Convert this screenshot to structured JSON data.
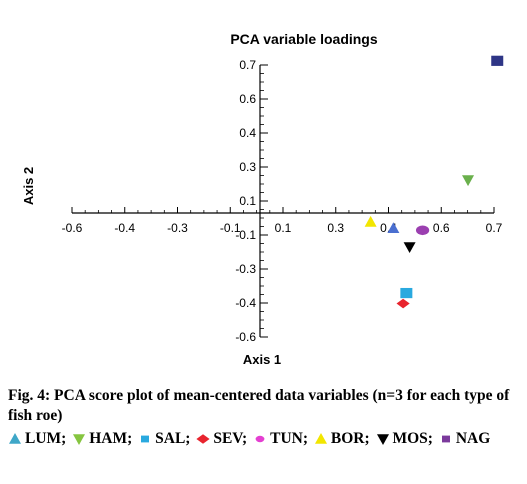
{
  "chart_data": {
    "type": "scatter",
    "title": "PCA variable loadings",
    "xlabel": "Axis 1",
    "ylabel": "Axis 2",
    "xlim": [
      -0.6,
      0.7
    ],
    "ylim": [
      -0.6,
      0.7
    ],
    "x_ticks": [
      "-0.6",
      "-0.4",
      "-0.3",
      "-0.1",
      "0.1",
      "0.3",
      "0.4",
      "0.6",
      "0.7"
    ],
    "y_ticks": [
      "0.7",
      "0.6",
      "0.4",
      "0.3",
      "0.1",
      "-0.1",
      "-0.3",
      "-0.4",
      "-0.6"
    ],
    "grid": false,
    "points": [
      {
        "label": "NAG",
        "x": 0.71,
        "y": 0.72,
        "marker": "square",
        "color": "#2e3586"
      },
      {
        "label": "HAM",
        "x": 0.62,
        "y": 0.15,
        "marker": "triangle-down",
        "color": "#6ab04c"
      },
      {
        "label": "BOR",
        "x": 0.32,
        "y": -0.05,
        "marker": "triangle-up",
        "color": "#f2e600"
      },
      {
        "label": "LUM",
        "x": 0.39,
        "y": -0.08,
        "marker": "triangle-up",
        "color": "#4a6fd0"
      },
      {
        "label": "TUN",
        "x": 0.48,
        "y": -0.09,
        "marker": "circle",
        "color": "#9b3fb0"
      },
      {
        "label": "MOS",
        "x": 0.44,
        "y": -0.17,
        "marker": "triangle-down",
        "color": "#000000"
      },
      {
        "label": "SAL",
        "x": 0.43,
        "y": -0.39,
        "marker": "square",
        "color": "#29a9df"
      },
      {
        "label": "SEV",
        "x": 0.42,
        "y": -0.44,
        "marker": "diamond",
        "color": "#e8242e"
      }
    ]
  },
  "caption": "Fig. 4: PCA score plot of mean-centered data variables (n=3 for each type of fish roe)",
  "legend": [
    {
      "label": "LUM;",
      "marker": "triangle-up",
      "color": "#3fa7c8"
    },
    {
      "label": "HAM;",
      "marker": "triangle-down",
      "color": "#86c540"
    },
    {
      "label": "SAL;",
      "marker": "square",
      "color": "#29a9df"
    },
    {
      "label": "SEV;",
      "marker": "diamond",
      "color": "#e8242e"
    },
    {
      "label": "TUN;",
      "marker": "circle",
      "color": "#e43fd1"
    },
    {
      "label": "BOR;",
      "marker": "triangle-up",
      "color": "#f2e600"
    },
    {
      "label": "MOS;",
      "marker": "triangle-down",
      "color": "#000000"
    },
    {
      "label": "NAG",
      "marker": "square",
      "color": "#7b3a9c"
    }
  ]
}
